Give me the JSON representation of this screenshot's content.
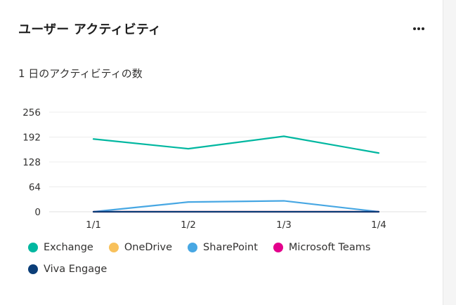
{
  "card": {
    "title": "ユーザー アクティビティ",
    "subtitle": "1 日のアクティビティの数",
    "more_icon": "more-horizontal-icon"
  },
  "chart_data": {
    "type": "line",
    "title": "1 日のアクティビティの数",
    "categories": [
      "1/1",
      "1/2",
      "1/3",
      "1/4"
    ],
    "ylim": [
      0,
      256
    ],
    "yticks": [
      0,
      64,
      128,
      192,
      256
    ],
    "grid": true,
    "legend_position": "bottom",
    "series": [
      {
        "name": "Exchange",
        "color": "#00b7a0",
        "values": [
          187,
          162,
          194,
          151
        ]
      },
      {
        "name": "OneDrive",
        "color": "#f8c15c",
        "values": [
          0,
          0,
          0,
          0
        ]
      },
      {
        "name": "SharePoint",
        "color": "#47a7e3",
        "values": [
          0,
          25,
          28,
          0
        ]
      },
      {
        "name": "Microsoft Teams",
        "color": "#e3008c",
        "values": [
          0,
          0,
          0,
          0
        ]
      },
      {
        "name": "Viva Engage",
        "color": "#0b3e78",
        "values": [
          0,
          0,
          0,
          0
        ]
      }
    ]
  }
}
